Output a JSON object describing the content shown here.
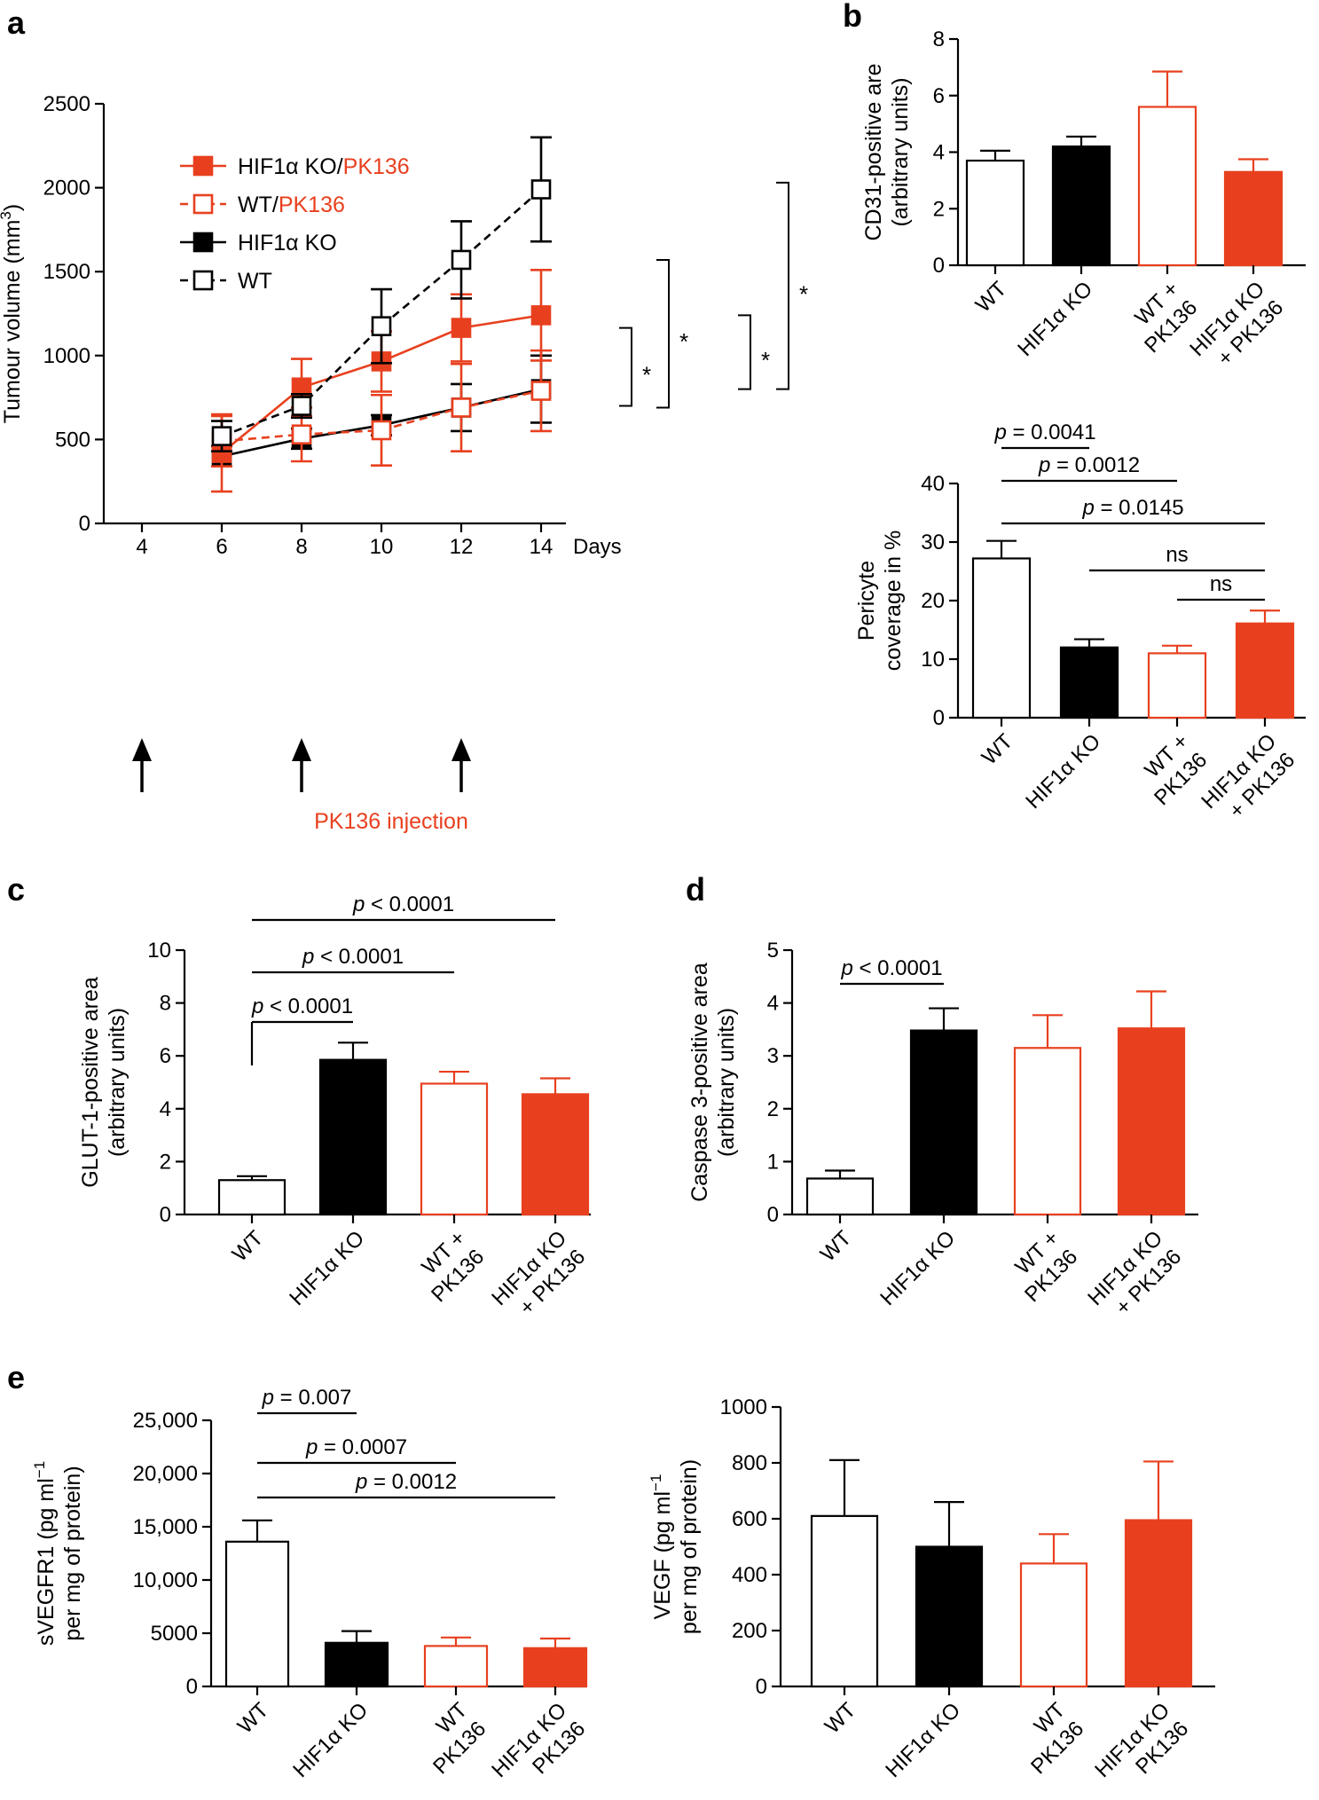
{
  "colors": {
    "red": "#e8401f",
    "black": "#000000",
    "white": "#ffffff"
  },
  "chart_data": [
    {
      "panel": "a",
      "type": "line",
      "ylabel": "Tumour volume (mm",
      "ylabel_sup": "3",
      "ylabel_close": ")",
      "xlabel": "Days",
      "x_ticks": [
        4,
        6,
        8,
        10,
        12,
        14
      ],
      "y_ticks": [
        0,
        500,
        1000,
        1500,
        2000,
        2500
      ],
      "ylim": [
        0,
        2500
      ],
      "xlim": [
        3,
        15
      ],
      "series": [
        {
          "name": "HIF1α KO/PK136",
          "label_a": "HIF1α KO/",
          "label_b": "PK136",
          "color": "#e8401f",
          "marker": "filled-square",
          "dash": false,
          "x": [
            6,
            8,
            10,
            12,
            14
          ],
          "y": [
            420,
            810,
            965,
            1165,
            1240
          ],
          "err": [
            230,
            170,
            180,
            200,
            270
          ]
        },
        {
          "name": "WT/PK136",
          "label_a": "WT/",
          "label_b": "PK136",
          "color": "#e8401f",
          "marker": "open-square",
          "dash": true,
          "x": [
            6,
            8,
            10,
            12,
            14
          ],
          "y": [
            490,
            530,
            555,
            690,
            790
          ],
          "err": [
            150,
            160,
            210,
            260,
            240
          ]
        },
        {
          "name": "HIF1α KO",
          "label_a": "HIF1α KO",
          "label_b": "",
          "color": "#000000",
          "marker": "filled-square",
          "dash": false,
          "x": [
            6,
            8,
            10,
            12,
            14
          ],
          "y": [
            400,
            505,
            585,
            690,
            800
          ],
          "err": [
            60,
            60,
            60,
            140,
            200
          ]
        },
        {
          "name": "WT",
          "label_a": "WT",
          "label_b": "",
          "color": "#000000",
          "marker": "open-square",
          "dash": true,
          "x": [
            6,
            8,
            10,
            12,
            14
          ],
          "y": [
            520,
            700,
            1175,
            1570,
            1990
          ],
          "err": [
            90,
            70,
            220,
            230,
            310
          ]
        }
      ],
      "significance": [
        "*",
        "*",
        "*",
        "*"
      ],
      "arrows_at_days": [
        4,
        8,
        12
      ],
      "injection_label": "PK136 injection"
    },
    {
      "panel": "b",
      "type": "bar",
      "ylabel": [
        "CD31-positive are",
        "(arbitrary units)"
      ],
      "y_ticks": [
        0,
        2,
        4,
        6,
        8
      ],
      "ylim": [
        0,
        8
      ],
      "categories": [
        [
          "WT"
        ],
        [
          "HIF1α KO"
        ],
        [
          "WT +",
          "PK136"
        ],
        [
          "HIF1α KO",
          "+ PK136"
        ]
      ],
      "values": [
        3.7,
        4.2,
        5.6,
        3.3
      ],
      "errors": [
        0.35,
        0.35,
        1.25,
        0.45
      ],
      "annotations": []
    },
    {
      "panel": "b2",
      "type": "bar",
      "ylabel": [
        "Pericyte",
        "coverage in %"
      ],
      "y_ticks": [
        0,
        10,
        20,
        30,
        40
      ],
      "ylim": [
        0,
        40
      ],
      "categories": [
        [
          "WT"
        ],
        [
          "HIF1α KO"
        ],
        [
          "WT +",
          "PK136"
        ],
        [
          "HIF1α KO",
          "+ PK136"
        ]
      ],
      "values": [
        27.2,
        12.0,
        11.0,
        16.1
      ],
      "errors": [
        3.0,
        1.4,
        1.3,
        2.2
      ],
      "annotations": [
        {
          "p": "p",
          "text": " = 0.0041",
          "from": 0,
          "to": 1
        },
        {
          "p": "p",
          "text": " = 0.0012",
          "from": 0,
          "to": 2
        },
        {
          "p": "p",
          "text": " = 0.0145",
          "from": 0,
          "to": 3
        },
        {
          "p": "",
          "text": "ns",
          "from": 1,
          "to": 3
        },
        {
          "p": "",
          "text": "ns",
          "from": 2,
          "to": 3
        }
      ]
    },
    {
      "panel": "c",
      "type": "bar",
      "ylabel": [
        "GLUT-1-positive area",
        "(arbitrary units)"
      ],
      "y_ticks": [
        0,
        2,
        4,
        6,
        8,
        10
      ],
      "ylim": [
        0,
        10
      ],
      "categories": [
        [
          "WT"
        ],
        [
          "HIF1α KO"
        ],
        [
          "WT +",
          "PK136"
        ],
        [
          "HIF1α KO",
          "+ PK136"
        ]
      ],
      "values": [
        1.3,
        5.85,
        4.95,
        4.55
      ],
      "errors": [
        0.15,
        0.65,
        0.45,
        0.6
      ],
      "annotations": [
        {
          "p": "p",
          "text": " < 0.0001",
          "from": 0,
          "to": 1
        },
        {
          "p": "p",
          "text": " < 0.0001",
          "from": 0,
          "to": 2
        },
        {
          "p": "p",
          "text": " < 0.0001",
          "from": 0,
          "to": 3
        }
      ]
    },
    {
      "panel": "d",
      "type": "bar",
      "ylabel": [
        "Caspase 3-positive area",
        "(arbitrary units)"
      ],
      "y_ticks": [
        0,
        1,
        2,
        3,
        4,
        5
      ],
      "ylim": [
        0,
        5
      ],
      "categories": [
        [
          "WT"
        ],
        [
          "HIF1α KO"
        ],
        [
          "WT +",
          "PK136"
        ],
        [
          "HIF1α KO",
          "+ PK136"
        ]
      ],
      "values": [
        0.68,
        3.48,
        3.15,
        3.52
      ],
      "errors": [
        0.15,
        0.42,
        0.62,
        0.7
      ],
      "annotations": [
        {
          "p": "p",
          "text": " < 0.0001",
          "from": 0,
          "to": 1
        }
      ]
    },
    {
      "panel": "e",
      "type": "bar",
      "ylabel": [
        "sVEGFR1 (pg ml",
        "per mg of protein)"
      ],
      "ylabel_sup": "−1",
      "y_ticks": [
        0,
        5000,
        10000,
        15000,
        20000,
        25000
      ],
      "y_tick_labels": [
        "0",
        "5000",
        "10,000",
        "15,000",
        "20,000",
        "25,000"
      ],
      "ylim": [
        0,
        25000
      ],
      "categories": [
        [
          "WT"
        ],
        [
          "HIF1α KO"
        ],
        [
          "WT",
          "PK136"
        ],
        [
          "HIF1α KO",
          "PK136"
        ]
      ],
      "values": [
        13600,
        4100,
        3800,
        3600
      ],
      "errors": [
        2000,
        1100,
        800,
        900
      ],
      "annotations": [
        {
          "p": "p",
          "text": " = 0.007",
          "from": 0,
          "to": 1
        },
        {
          "p": "p",
          "text": " = 0.0007",
          "from": 0,
          "to": 2
        },
        {
          "p": "p",
          "text": " = 0.0012",
          "from": 0,
          "to": 3
        }
      ]
    },
    {
      "panel": "e2",
      "type": "bar",
      "ylabel": [
        "VEGF (pg ml",
        "per mg of protein)"
      ],
      "ylabel_sup": "−1",
      "y_ticks": [
        0,
        200,
        400,
        600,
        800,
        1000
      ],
      "ylim": [
        0,
        1000
      ],
      "categories": [
        [
          "WT"
        ],
        [
          "HIF1α KO"
        ],
        [
          "WT",
          "PK136"
        ],
        [
          "HIF1α KO",
          "PK136"
        ]
      ],
      "values": [
        610,
        500,
        440,
        595
      ],
      "errors": [
        200,
        160,
        105,
        210
      ],
      "annotations": []
    }
  ],
  "panel_letters": [
    "a",
    "b",
    "c",
    "d",
    "e"
  ]
}
